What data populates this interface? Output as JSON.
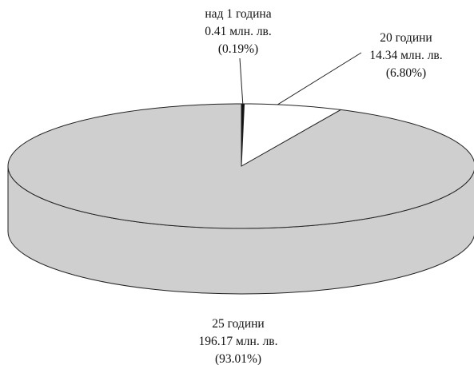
{
  "chart_data": {
    "type": "pie",
    "style": "3d",
    "title": "",
    "slices": [
      {
        "category": "25 години",
        "value": 196.17,
        "percent": 93.01,
        "value_label": "196.17 млн. лв.",
        "percent_label": "(93.01%)",
        "color": "#cfcfcf"
      },
      {
        "category": "над 1 година",
        "value": 0.41,
        "percent": 0.19,
        "value_label": "0.41 млн. лв.",
        "percent_label": "(0.19%)",
        "color": "#111111"
      },
      {
        "category": "20 години",
        "value": 14.34,
        "percent": 6.8,
        "value_label": "14.34 млн. лв.",
        "percent_label": "(6.80%)",
        "color": "#ffffff"
      }
    ],
    "edge_color": "#222222"
  }
}
